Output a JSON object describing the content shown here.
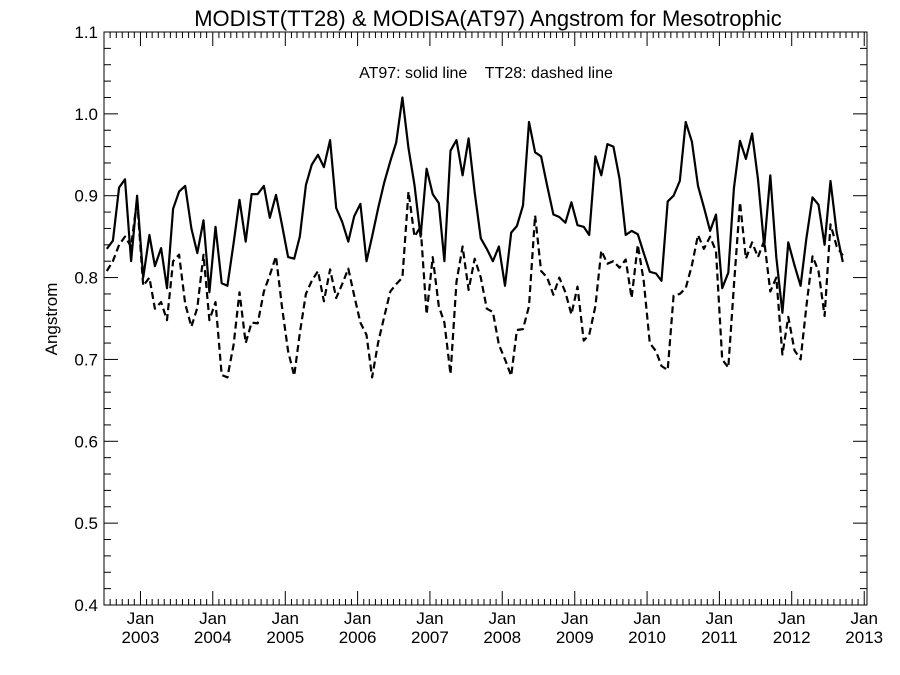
{
  "chart_data": {
    "type": "line",
    "title": "MODIST(TT28) & MODISA(AT97)  Angstrom for Mesotrophic",
    "annotation": "AT97: solid line    TT28: dashed line",
    "xlabel": "",
    "ylabel": "Angstrom",
    "xlim": [
      "2002-07-01",
      "2013-01-15"
    ],
    "ylim": [
      0.4,
      1.1
    ],
    "yticks": [
      0.4,
      0.5,
      0.6,
      0.7,
      0.8,
      0.9,
      1.0,
      1.1
    ],
    "ytick_labels": [
      "0.4",
      "0.5",
      "0.6",
      "0.7",
      "0.8",
      "0.9",
      "1.0",
      "1.1"
    ],
    "xticks": [
      {
        "month": "Jan",
        "year": "2003",
        "date": "2003-01-01"
      },
      {
        "month": "Jan",
        "year": "2004",
        "date": "2004-01-01"
      },
      {
        "month": "Jan",
        "year": "2005",
        "date": "2005-01-01"
      },
      {
        "month": "Jan",
        "year": "2006",
        "date": "2006-01-01"
      },
      {
        "month": "Jan",
        "year": "2007",
        "date": "2007-01-01"
      },
      {
        "month": "Jan",
        "year": "2008",
        "date": "2008-01-01"
      },
      {
        "month": "Jan",
        "year": "2009",
        "date": "2009-01-01"
      },
      {
        "month": "Jan",
        "year": "2010",
        "date": "2010-01-01"
      },
      {
        "month": "Jan",
        "year": "2011",
        "date": "2011-01-01"
      },
      {
        "month": "Jan",
        "year": "2012",
        "date": "2012-01-01"
      },
      {
        "month": "Jan",
        "year": "2013",
        "date": "2013-01-01"
      }
    ],
    "grid": false,
    "start_month": "2002-07",
    "series": [
      {
        "name": "AT97",
        "style": "solid",
        "color": "#000000",
        "values": [
          0.835,
          0.845,
          0.91,
          0.92,
          0.82,
          0.9,
          0.8,
          0.852,
          0.814,
          0.836,
          0.787,
          0.884,
          0.905,
          0.912,
          0.86,
          0.83,
          0.87,
          0.782,
          0.862,
          0.793,
          0.79,
          0.842,
          0.895,
          0.844,
          0.902,
          0.902,
          0.912,
          0.873,
          0.901,
          0.865,
          0.825,
          0.823,
          0.85,
          0.913,
          0.938,
          0.95,
          0.935,
          0.968,
          0.885,
          0.868,
          0.844,
          0.875,
          0.89,
          0.82,
          0.85,
          0.885,
          0.916,
          0.942,
          0.965,
          1.02,
          0.958,
          0.913,
          0.85,
          0.933,
          0.902,
          0.891,
          0.82,
          0.955,
          0.968,
          0.925,
          0.97,
          0.904,
          0.848,
          0.835,
          0.82,
          0.838,
          0.79,
          0.855,
          0.863,
          0.888,
          0.99,
          0.953,
          0.948,
          0.912,
          0.877,
          0.874,
          0.867,
          0.892,
          0.864,
          0.862,
          0.852,
          0.948,
          0.925,
          0.963,
          0.96,
          0.921,
          0.852,
          0.857,
          0.853,
          0.83,
          0.807,
          0.805,
          0.796,
          0.893,
          0.9,
          0.918,
          0.99,
          0.966,
          0.912,
          0.886,
          0.857,
          0.877,
          0.787,
          0.806,
          0.909,
          0.967,
          0.945,
          0.976,
          0.92,
          0.838,
          0.925,
          0.825,
          0.757,
          0.843,
          0.815,
          0.79,
          0.848,
          0.898,
          0.889,
          0.84,
          0.918,
          0.855,
          0.819
        ]
      },
      {
        "name": "TT28",
        "style": "dashed",
        "color": "#000000",
        "values": [
          0.808,
          0.82,
          0.84,
          0.85,
          0.838,
          0.895,
          0.79,
          0.8,
          0.762,
          0.77,
          0.748,
          0.82,
          0.828,
          0.768,
          0.74,
          0.763,
          0.828,
          0.748,
          0.77,
          0.681,
          0.678,
          0.718,
          0.782,
          0.72,
          0.745,
          0.744,
          0.783,
          0.803,
          0.826,
          0.765,
          0.71,
          0.68,
          0.732,
          0.78,
          0.796,
          0.808,
          0.771,
          0.81,
          0.775,
          0.792,
          0.811,
          0.778,
          0.745,
          0.73,
          0.678,
          0.721,
          0.752,
          0.783,
          0.792,
          0.8,
          0.905,
          0.85,
          0.862,
          0.755,
          0.825,
          0.765,
          0.745,
          0.682,
          0.795,
          0.838,
          0.785,
          0.823,
          0.8,
          0.762,
          0.758,
          0.718,
          0.7,
          0.68,
          0.736,
          0.737,
          0.765,
          0.876,
          0.808,
          0.8,
          0.779,
          0.8,
          0.782,
          0.755,
          0.789,
          0.723,
          0.73,
          0.765,
          0.833,
          0.817,
          0.82,
          0.812,
          0.822,
          0.775,
          0.84,
          0.796,
          0.72,
          0.71,
          0.692,
          0.687,
          0.778,
          0.78,
          0.787,
          0.815,
          0.852,
          0.835,
          0.85,
          0.832,
          0.7,
          0.69,
          0.79,
          0.892,
          0.823,
          0.843,
          0.825,
          0.845,
          0.783,
          0.8,
          0.706,
          0.752,
          0.711,
          0.7,
          0.765,
          0.826,
          0.808,
          0.753,
          0.865,
          0.838,
          0.827
        ]
      }
    ]
  }
}
